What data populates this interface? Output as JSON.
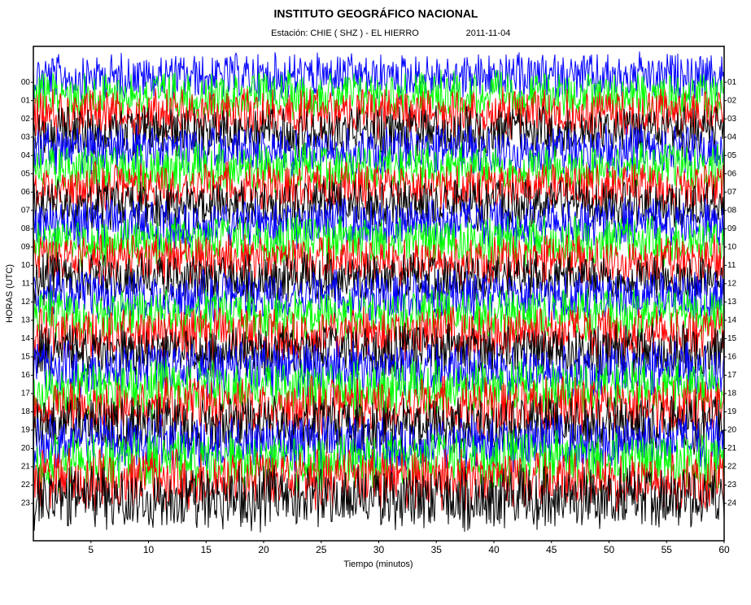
{
  "chart_data": {
    "type": "helicorder",
    "title": "INSTITUTO GEOGRÁFICO NACIONAL",
    "subtitle": "Estación:  CHIE ( SHZ ) - EL HIERRO",
    "date": "2011-11-04",
    "xlabel": "Tiempo (minutos)",
    "ylabel": "HORAS (UTC)",
    "xlim": [
      0,
      60
    ],
    "xticks": [
      5,
      10,
      15,
      20,
      25,
      30,
      35,
      40,
      45,
      50,
      55,
      60
    ],
    "ylim": [
      -1.96,
      25.04
    ],
    "yticks": [
      {
        "value": 0,
        "label": "00"
      },
      {
        "value": 1,
        "label": "01"
      },
      {
        "value": 2,
        "label": "02"
      },
      {
        "value": 3,
        "label": "03"
      },
      {
        "value": 4,
        "label": "04"
      },
      {
        "value": 5,
        "label": "05"
      },
      {
        "value": 6,
        "label": "06"
      },
      {
        "value": 7,
        "label": "07"
      },
      {
        "value": 8,
        "label": "08"
      },
      {
        "value": 9,
        "label": "09"
      },
      {
        "value": 10,
        "label": "10"
      },
      {
        "value": 11,
        "label": "11"
      },
      {
        "value": 12,
        "label": "12"
      },
      {
        "value": 13,
        "label": "13"
      },
      {
        "value": 14,
        "label": "14"
      },
      {
        "value": 15,
        "label": "15"
      },
      {
        "value": 16,
        "label": "16"
      },
      {
        "value": 17,
        "label": "17"
      },
      {
        "value": 18,
        "label": "18"
      },
      {
        "value": 19,
        "label": "19"
      },
      {
        "value": 20,
        "label": "20"
      },
      {
        "value": 21,
        "label": "21"
      },
      {
        "value": 22,
        "label": "22"
      },
      {
        "value": 23,
        "label": "23"
      }
    ],
    "y2lim": [
      -0.96,
      26.04
    ],
    "y2ticks": [
      {
        "value": 1,
        "label": "01"
      },
      {
        "value": 2,
        "label": "02"
      },
      {
        "value": 3,
        "label": "03"
      },
      {
        "value": 4,
        "label": "04"
      },
      {
        "value": 5,
        "label": "05"
      },
      {
        "value": 6,
        "label": "06"
      },
      {
        "value": 7,
        "label": "07"
      },
      {
        "value": 8,
        "label": "08"
      },
      {
        "value": 9,
        "label": "09"
      },
      {
        "value": 10,
        "label": "10"
      },
      {
        "value": 11,
        "label": "11"
      },
      {
        "value": 12,
        "label": "12"
      },
      {
        "value": 13,
        "label": "13"
      },
      {
        "value": 14,
        "label": "14"
      },
      {
        "value": 15,
        "label": "15"
      },
      {
        "value": 16,
        "label": "16"
      },
      {
        "value": 17,
        "label": "17"
      },
      {
        "value": 18,
        "label": "18"
      },
      {
        "value": 19,
        "label": "19"
      },
      {
        "value": 20,
        "label": "20"
      },
      {
        "value": 21,
        "label": "21"
      },
      {
        "value": 22,
        "label": "22"
      },
      {
        "value": 23,
        "label": "23"
      },
      {
        "value": 24,
        "label": "24"
      }
    ],
    "trace_colors": [
      "#0000ff",
      "#00ff00",
      "#ff0000",
      "#000000"
    ],
    "trace_offset": -1.3,
    "amplitude": [
      1.4,
      1.4,
      1.5,
      1.5,
      1.5,
      1.5,
      1.4,
      1.5,
      1.5,
      1.5,
      1.5,
      1.5,
      1.5,
      1.5,
      1.6,
      1.6,
      1.7,
      1.7,
      1.7,
      1.7,
      1.7,
      1.8,
      1.8,
      1.9
    ]
  }
}
